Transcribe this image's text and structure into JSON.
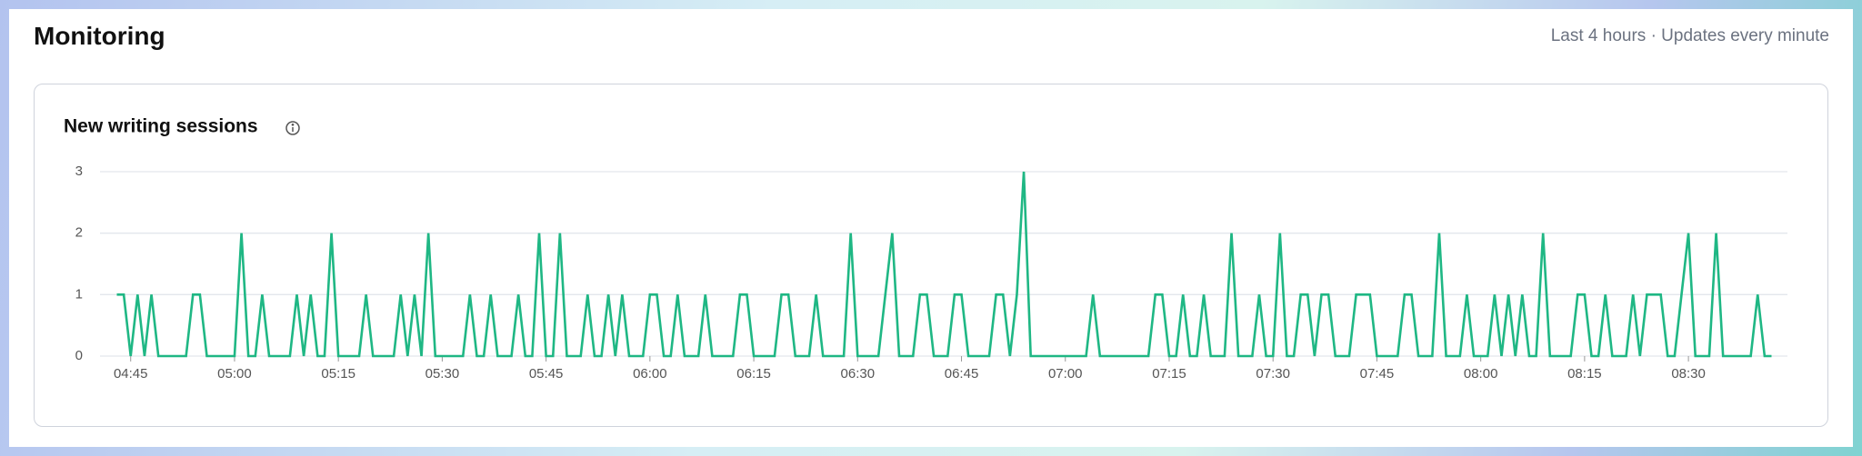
{
  "header": {
    "title": "Monitoring",
    "status": "Last 4 hours · Updates every minute"
  },
  "chart_data": {
    "type": "line",
    "title": "New writing sessions",
    "color": "#1fb784",
    "grid": true,
    "ylim": [
      0,
      3
    ],
    "yticks": [
      0,
      1,
      2,
      3
    ],
    "xticks": [
      "04:45",
      "05:00",
      "05:15",
      "05:30",
      "05:45",
      "06:00",
      "06:15",
      "06:30",
      "06:45",
      "07:00",
      "07:15",
      "07:30",
      "07:45",
      "08:00",
      "08:15",
      "08:30"
    ],
    "x": [
      "04:43",
      "04:44",
      "04:45",
      "04:46",
      "04:47",
      "04:48",
      "04:49",
      "04:50",
      "04:51",
      "04:52",
      "04:53",
      "04:54",
      "04:55",
      "04:56",
      "04:57",
      "04:58",
      "04:59",
      "05:00",
      "05:01",
      "05:02",
      "05:03",
      "05:04",
      "05:05",
      "05:06",
      "05:07",
      "05:08",
      "05:09",
      "05:10",
      "05:11",
      "05:12",
      "05:13",
      "05:14",
      "05:15",
      "05:16",
      "05:17",
      "05:18",
      "05:19",
      "05:20",
      "05:21",
      "05:22",
      "05:23",
      "05:24",
      "05:25",
      "05:26",
      "05:27",
      "05:28",
      "05:29",
      "05:30",
      "05:31",
      "05:32",
      "05:33",
      "05:34",
      "05:35",
      "05:36",
      "05:37",
      "05:38",
      "05:39",
      "05:40",
      "05:41",
      "05:42",
      "05:43",
      "05:44",
      "05:45",
      "05:46",
      "05:47",
      "05:48",
      "05:49",
      "05:50",
      "05:51",
      "05:52",
      "05:53",
      "05:54",
      "05:55",
      "05:56",
      "05:57",
      "05:58",
      "05:59",
      "06:00",
      "06:01",
      "06:02",
      "06:03",
      "06:04",
      "06:05",
      "06:06",
      "06:07",
      "06:08",
      "06:09",
      "06:10",
      "06:11",
      "06:12",
      "06:13",
      "06:14",
      "06:15",
      "06:16",
      "06:17",
      "06:18",
      "06:19",
      "06:20",
      "06:21",
      "06:22",
      "06:23",
      "06:24",
      "06:25",
      "06:26",
      "06:27",
      "06:28",
      "06:29",
      "06:30",
      "06:31",
      "06:32",
      "06:33",
      "06:34",
      "06:35",
      "06:36",
      "06:37",
      "06:38",
      "06:39",
      "06:40",
      "06:41",
      "06:42",
      "06:43",
      "06:44",
      "06:45",
      "06:46",
      "06:47",
      "06:48",
      "06:49",
      "06:50",
      "06:51",
      "06:52",
      "06:53",
      "06:54",
      "06:55",
      "06:56",
      "06:57",
      "06:58",
      "06:59",
      "07:00",
      "07:01",
      "07:02",
      "07:03",
      "07:04",
      "07:05",
      "07:06",
      "07:07",
      "07:08",
      "07:09",
      "07:10",
      "07:11",
      "07:12",
      "07:13",
      "07:14",
      "07:15",
      "07:16",
      "07:17",
      "07:18",
      "07:19",
      "07:20",
      "07:21",
      "07:22",
      "07:23",
      "07:24",
      "07:25",
      "07:26",
      "07:27",
      "07:28",
      "07:29",
      "07:30",
      "07:31",
      "07:32",
      "07:33",
      "07:34",
      "07:35",
      "07:36",
      "07:37",
      "07:38",
      "07:39",
      "07:40",
      "07:41",
      "07:42",
      "07:43",
      "07:44",
      "07:45",
      "07:46",
      "07:47",
      "07:48",
      "07:49",
      "07:50",
      "07:51",
      "07:52",
      "07:53",
      "07:54",
      "07:55",
      "07:56",
      "07:57",
      "07:58",
      "07:59",
      "08:00",
      "08:01",
      "08:02",
      "08:03",
      "08:04",
      "08:05",
      "08:06",
      "08:07",
      "08:08",
      "08:09",
      "08:10",
      "08:11",
      "08:12",
      "08:13",
      "08:14",
      "08:15",
      "08:16",
      "08:17",
      "08:18",
      "08:19",
      "08:20",
      "08:21",
      "08:22",
      "08:23",
      "08:24",
      "08:25",
      "08:26",
      "08:27",
      "08:28",
      "08:29",
      "08:30",
      "08:31",
      "08:32",
      "08:33",
      "08:34",
      "08:35",
      "08:36",
      "08:37",
      "08:38",
      "08:39",
      "08:40",
      "08:41",
      "08:42"
    ],
    "values": [
      1,
      1,
      0,
      1,
      0,
      1,
      0,
      0,
      0,
      0,
      0,
      1,
      1,
      0,
      0,
      0,
      0,
      0,
      2,
      0,
      0,
      1,
      0,
      0,
      0,
      0,
      1,
      0,
      1,
      0,
      0,
      2,
      0,
      0,
      0,
      0,
      1,
      0,
      0,
      0,
      0,
      1,
      0,
      1,
      0,
      2,
      0,
      0,
      0,
      0,
      0,
      1,
      0,
      0,
      1,
      0,
      0,
      0,
      1,
      0,
      0,
      2,
      0,
      0,
      2,
      0,
      0,
      0,
      1,
      0,
      0,
      1,
      0,
      1,
      0,
      0,
      0,
      1,
      1,
      0,
      0,
      1,
      0,
      0,
      0,
      1,
      0,
      0,
      0,
      0,
      1,
      1,
      0,
      0,
      0,
      0,
      1,
      1,
      0,
      0,
      0,
      1,
      0,
      0,
      0,
      0,
      2,
      0,
      0,
      0,
      0,
      1,
      2,
      0,
      0,
      0,
      1,
      1,
      0,
      0,
      0,
      1,
      1,
      0,
      0,
      0,
      0,
      1,
      1,
      0,
      1,
      3,
      0,
      0,
      0,
      0,
      0,
      0,
      0,
      0,
      0,
      1,
      0,
      0,
      0,
      0,
      0,
      0,
      0,
      0,
      1,
      1,
      0,
      0,
      1,
      0,
      0,
      1,
      0,
      0,
      0,
      2,
      0,
      0,
      0,
      1,
      0,
      0,
      2,
      0,
      0,
      1,
      1,
      0,
      1,
      1,
      0,
      0,
      0,
      1,
      1,
      1,
      0,
      0,
      0,
      0,
      1,
      1,
      0,
      0,
      0,
      2,
      0,
      0,
      0,
      1,
      0,
      0,
      0,
      1,
      0,
      1,
      0,
      1,
      0,
      0,
      2,
      0,
      0,
      0,
      0,
      1,
      1,
      0,
      0,
      1,
      0,
      0,
      0,
      1,
      0,
      1,
      1,
      1,
      0,
      0,
      1,
      2,
      0,
      0,
      0,
      2,
      0,
      0,
      0,
      0,
      0,
      1,
      0,
      0
    ]
  }
}
